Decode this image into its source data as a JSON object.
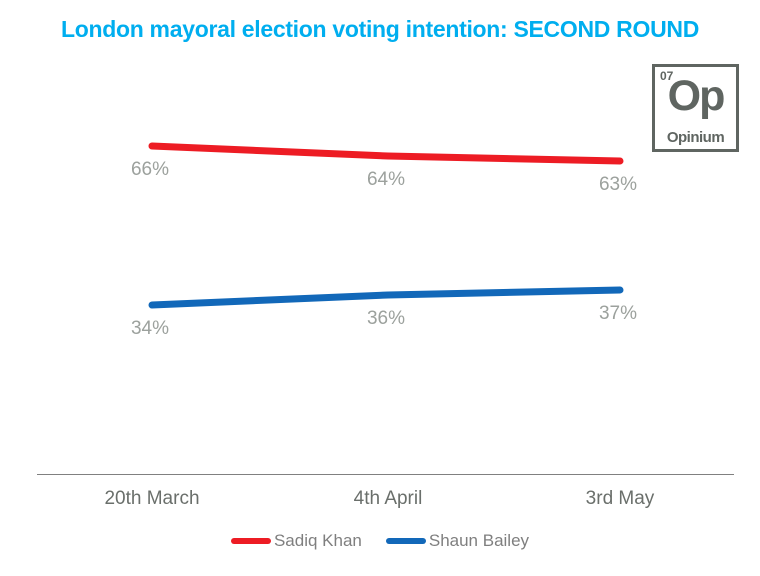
{
  "title": "London mayoral election voting intention: SECOND ROUND",
  "logo": {
    "number": "07",
    "symbol": "Op",
    "name": "Opinium"
  },
  "chart_data": {
    "type": "line",
    "title": "London mayoral election voting intention: SECOND ROUND",
    "categories": [
      "20th March",
      "4th April",
      "3rd May"
    ],
    "series": [
      {
        "name": "Sadiq Khan",
        "values": [
          66,
          64,
          63
        ],
        "labels": [
          "66%",
          "64%",
          "63%"
        ],
        "color": "#ed1c24"
      },
      {
        "name": "Shaun Bailey",
        "values": [
          34,
          36,
          37
        ],
        "labels": [
          "34%",
          "36%",
          "37%"
        ],
        "color": "#1268b9"
      }
    ],
    "ylim": [
      0,
      100
    ],
    "grid": false,
    "legend_position": "bottom",
    "data_labels": true
  },
  "colors": {
    "title": "#00aeef",
    "axis_line": "#808080",
    "data_label": "#9ca19d",
    "axis_label": "#6a6f6b",
    "legend_text": "#7f7f7f",
    "logo": "#5f6561"
  }
}
